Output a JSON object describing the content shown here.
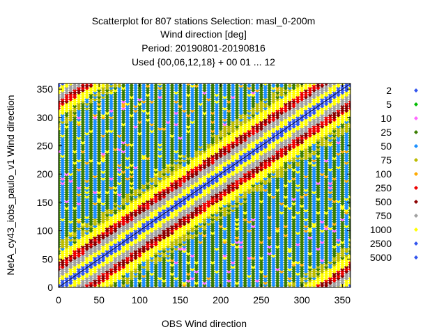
{
  "chart_data": {
    "type": "scatter",
    "title_lines": [
      "Scatterplot for  807 stations Selection: masl_0-200m",
      "Wind direction [deg]",
      "Period: 20190801-20190816",
      "Used {00,06,12,18} + 00 01 ... 12"
    ],
    "xlabel": "OBS Wind direction",
    "ylabel": "NetA_cy43_iobs_paulo_v1 Wind direction",
    "xlim": [
      0,
      360
    ],
    "ylim": [
      0,
      360
    ],
    "xticks": [
      "0",
      "50",
      "100",
      "150",
      "200",
      "250",
      "300",
      "350"
    ],
    "yticks": [
      "0",
      "50",
      "100",
      "150",
      "200",
      "250",
      "300",
      "350"
    ],
    "xtick_values": [
      0,
      50,
      100,
      150,
      200,
      250,
      300,
      350
    ],
    "ytick_values": [
      0,
      50,
      100,
      150,
      200,
      250,
      300,
      350
    ],
    "diagonal": true,
    "legend_position": "right",
    "legend": [
      {
        "label": "2",
        "color": "#3355ee"
      },
      {
        "label": "5",
        "color": "#00bb00"
      },
      {
        "label": "10",
        "color": "#ff66ff"
      },
      {
        "label": "25",
        "color": "#3a7d00"
      },
      {
        "label": "50",
        "color": "#1a8fff"
      },
      {
        "label": "75",
        "color": "#bbbb00"
      },
      {
        "label": "100",
        "color": "#ffaa00"
      },
      {
        "label": "250",
        "color": "#ee0000"
      },
      {
        "label": "500",
        "color": "#8b0000"
      },
      {
        "label": "750",
        "color": "#a0a0a0"
      },
      {
        "label": "1000",
        "color": "#ffff00"
      },
      {
        "label": "2500",
        "color": "#3355ee"
      },
      {
        "label": "5000",
        "color": "#3355ee"
      }
    ],
    "columns_x": [
      0,
      5,
      10,
      15,
      20,
      25,
      30,
      35,
      40,
      45,
      50,
      55,
      60,
      65,
      70,
      75,
      80,
      85,
      90,
      95,
      100,
      105,
      110,
      115,
      120,
      125,
      130,
      135,
      140,
      145,
      150,
      155,
      160,
      165,
      170,
      175,
      180,
      185,
      190,
      195,
      200,
      205,
      210,
      215,
      220,
      225,
      230,
      235,
      240,
      245,
      250,
      255,
      260,
      265,
      270,
      275,
      280,
      285,
      290,
      295,
      300,
      305,
      310,
      315,
      320,
      325,
      330,
      335,
      340,
      345,
      350,
      355,
      360
    ],
    "density_bins": [
      {
        "y": [
          0,
          360
        ],
        "count_class": "25"
      },
      {
        "y": [
          0,
          360
        ],
        "count_class": "50"
      },
      {
        "along": "diagonal y=x",
        "count_class": "250"
      },
      {
        "along": "diagonal y=x",
        "count_class": "500"
      },
      {
        "along": "diagonal y=x",
        "count_class": "1000"
      },
      {
        "along": "diagonal y=x",
        "count_class": "5000"
      }
    ]
  }
}
